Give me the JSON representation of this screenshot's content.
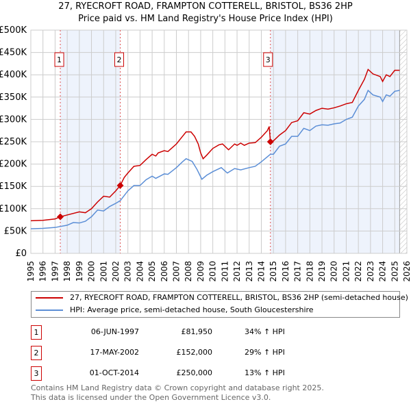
{
  "title_line1": "27, RYECROFT ROAD, FRAMPTON COTTERELL, BRISTOL, BS36 2HP",
  "title_line2": "Price paid vs. HM Land Registry's House Price Index (HPI)",
  "chart_data": {
    "type": "line",
    "title": "27, RYECROFT ROAD, FRAMPTON COTTERELL, BRISTOL, BS36 2HP — Price paid vs. HM Land Registry's House Price Index (HPI)",
    "xlim": [
      1995,
      2026
    ],
    "ylim": [
      0,
      500000
    ],
    "y_ticks": [
      0,
      50000,
      100000,
      150000,
      200000,
      250000,
      300000,
      350000,
      400000,
      450000,
      500000
    ],
    "y_tick_labels": [
      "£0",
      "£50K",
      "£100K",
      "£150K",
      "£200K",
      "£250K",
      "£300K",
      "£350K",
      "£400K",
      "£450K",
      "£500K"
    ],
    "x_tick_labels": [
      "1995",
      "1996",
      "1997",
      "1998",
      "1999",
      "2000",
      "2001",
      "2002",
      "2003",
      "2004",
      "2005",
      "2006",
      "2007",
      "2008",
      "2009",
      "2010",
      "2011",
      "2012",
      "2013",
      "2014",
      "2015",
      "2016",
      "2017",
      "2018",
      "2019",
      "2020",
      "2021",
      "2022",
      "2023",
      "2024",
      "2025",
      "2026"
    ],
    "grid": true,
    "colors": {
      "property": "#cc0000",
      "hpi": "#5b8ed6",
      "shade": "#eef3fc"
    },
    "series": [
      {
        "name": "27, RYECROFT ROAD, FRAMPTON COTTERELL, BRISTOL, BS36 2HP (semi-detached house)",
        "x": [
          1995,
          1996,
          1997,
          1997.43,
          1998,
          1999,
          1999.5,
          2000,
          2000.5,
          2001,
          2001.5,
          2002,
          2002.37,
          2002.7,
          2003,
          2003.5,
          2004,
          2004.5,
          2005,
          2005.3,
          2005.5,
          2006,
          2006.3,
          2007,
          2007.5,
          2007.8,
          2008.2,
          2008.5,
          2008.8,
          2009,
          2009.2,
          2009.5,
          2010,
          2010.5,
          2010.8,
          2011.3,
          2011.8,
          2012,
          2012.3,
          2012.6,
          2013,
          2013.5,
          2014,
          2014.5,
          2014.65,
          2014.75,
          2015,
          2015.5,
          2016,
          2016.5,
          2017,
          2017.5,
          2018,
          2018.5,
          2019,
          2019.5,
          2020,
          2020.5,
          2021,
          2021.5,
          2022,
          2022.5,
          2022.8,
          2023.2,
          2023.8,
          2024,
          2024.3,
          2024.6,
          2025,
          2025.4
        ],
        "values": [
          73000,
          74000,
          77000,
          81950,
          86000,
          93000,
          91000,
          100000,
          115000,
          128000,
          126000,
          140000,
          152000,
          170000,
          180000,
          195000,
          197000,
          210000,
          222000,
          218000,
          225000,
          230000,
          228000,
          245000,
          262000,
          272000,
          272000,
          262000,
          245000,
          225000,
          212000,
          220000,
          235000,
          243000,
          245000,
          232000,
          245000,
          242000,
          247000,
          242000,
          247000,
          248000,
          260000,
          275000,
          284000,
          250000,
          252000,
          265000,
          275000,
          293000,
          297000,
          315000,
          312000,
          320000,
          325000,
          323000,
          326000,
          330000,
          335000,
          338000,
          365000,
          390000,
          412000,
          402000,
          396000,
          385000,
          400000,
          396000,
          410000,
          410000
        ]
      },
      {
        "name": "HPI: Average price, semi-detached house, South Gloucestershire",
        "x": [
          1995,
          1996,
          1997,
          1998,
          1998.5,
          1999,
          1999.5,
          2000,
          2000.5,
          2001,
          2001.5,
          2002,
          2002.37,
          2003,
          2003.5,
          2004,
          2004.5,
          2005,
          2005.3,
          2006,
          2006.3,
          2007,
          2007.5,
          2007.8,
          2008.3,
          2008.7,
          2009.1,
          2009.5,
          2010,
          2010.7,
          2011.2,
          2011.8,
          2012.3,
          2013,
          2013.5,
          2014,
          2014.75,
          2015,
          2015.5,
          2016,
          2016.5,
          2017,
          2017.5,
          2018,
          2018.5,
          2019,
          2019.5,
          2020,
          2020.5,
          2021,
          2021.5,
          2022,
          2022.5,
          2022.8,
          2023.2,
          2023.8,
          2024,
          2024.3,
          2024.6,
          2025,
          2025.4
        ],
        "values": [
          55000,
          56000,
          58000,
          63000,
          69000,
          68000,
          72000,
          82000,
          97000,
          95000,
          105000,
          112000,
          118000,
          140000,
          152000,
          152000,
          165000,
          173000,
          168000,
          178000,
          177000,
          192000,
          205000,
          212000,
          206000,
          188000,
          166000,
          175000,
          183000,
          192000,
          180000,
          190000,
          187000,
          192000,
          195000,
          205000,
          222000,
          222000,
          240000,
          245000,
          262000,
          262000,
          280000,
          275000,
          285000,
          288000,
          287000,
          290000,
          292000,
          300000,
          305000,
          330000,
          345000,
          365000,
          355000,
          350000,
          340000,
          355000,
          352000,
          363000,
          365000
        ]
      }
    ],
    "sales": [
      {
        "label": "1",
        "x": 1997.43,
        "value": 81950
      },
      {
        "label": "2",
        "x": 2002.37,
        "value": 152000
      },
      {
        "label": "3",
        "x": 2014.75,
        "value": 250000
      }
    ],
    "data_end": 2025.4
  },
  "legend": {
    "property": "27, RYECROFT ROAD, FRAMPTON COTTERELL, BRISTOL, BS36 2HP (semi-detached house)",
    "hpi": "HPI: Average price, semi-detached house, South Gloucestershire"
  },
  "sales_table": [
    {
      "num": "1",
      "date": "06-JUN-1997",
      "price": "£81,950",
      "hpi": "34% ↑ HPI"
    },
    {
      "num": "2",
      "date": "17-MAY-2002",
      "price": "£152,000",
      "hpi": "29% ↑ HPI"
    },
    {
      "num": "3",
      "date": "01-OCT-2014",
      "price": "£250,000",
      "hpi": "13% ↑ HPI"
    }
  ],
  "footer": {
    "line1": "Contains HM Land Registry data © Crown copyright and database right 2025.",
    "line2": "This data is licensed under the Open Government Licence v3.0."
  }
}
